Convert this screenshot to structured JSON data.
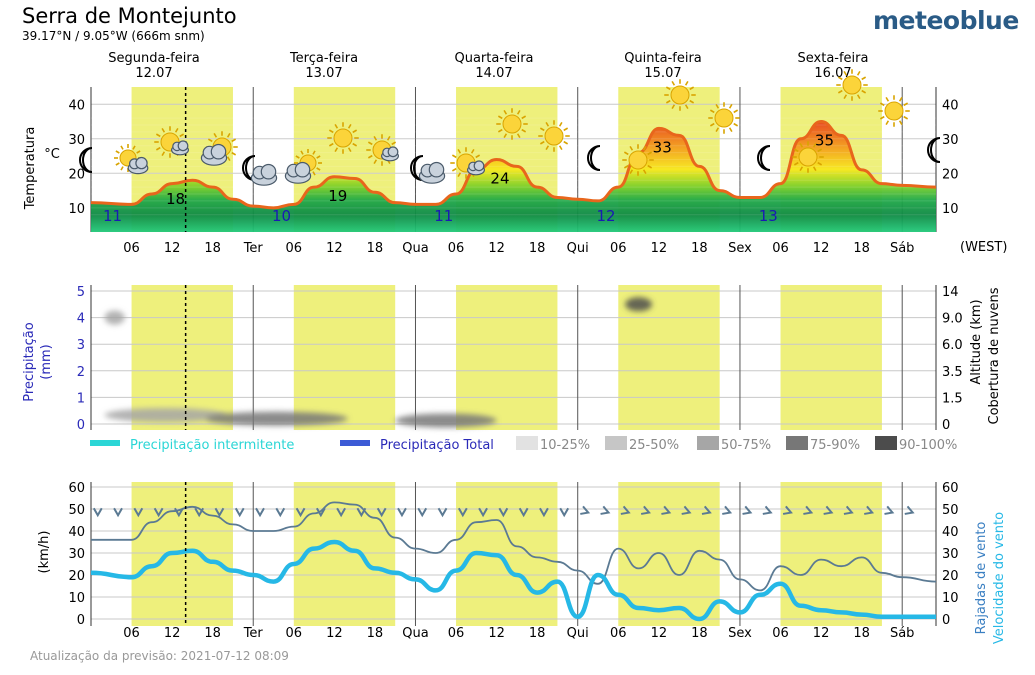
{
  "header": {
    "location": "Serra de Montejunto",
    "coordinates": "39.17°N / 9.05°W (666m snm)",
    "brand": "meteoblue"
  },
  "days": [
    {
      "name": "Segunda-feira",
      "date": "12.07",
      "short": ""
    },
    {
      "name": "Terça-feira",
      "date": "13.07",
      "short": "Ter"
    },
    {
      "name": "Quarta-feira",
      "date": "14.07",
      "short": "Qua"
    },
    {
      "name": "Quinta-feira",
      "date": "15.07",
      "short": "Qui"
    },
    {
      "name": "Sexta-feira",
      "date": "16.07",
      "short": "Sex"
    },
    {
      "name": "",
      "date": "",
      "short": "Sáb"
    }
  ],
  "hour_ticks": [
    "06",
    "12",
    "18"
  ],
  "timezone_label": "(WEST)",
  "colors": {
    "daylight": "#eef07c",
    "temp_line": "#e8661c",
    "wind": "#26b8e6",
    "gust": "#5b7a93",
    "cloud": "#8c8c8c"
  },
  "chart_data": [
    {
      "type": "area",
      "title": "Temperatura",
      "ylabel": "Temperatura °C",
      "ylim": [
        3,
        45
      ],
      "yticks": [
        10,
        20,
        30,
        40
      ],
      "x_unit": "hours from 2021-07-12 00:00",
      "x": [
        0,
        6,
        9,
        12,
        15,
        18,
        21,
        24,
        27,
        30,
        33,
        36,
        39,
        42,
        45,
        48,
        51,
        54,
        57,
        60,
        63,
        66,
        69,
        72,
        75,
        78,
        81,
        84,
        87,
        90,
        93,
        96,
        99,
        102,
        105,
        108,
        111,
        114,
        117,
        120,
        123
      ],
      "temperature_c": [
        11.5,
        11,
        14,
        17,
        18,
        16,
        12.5,
        10.5,
        10,
        11,
        16,
        19,
        18.5,
        14.5,
        11.5,
        11,
        11,
        14,
        21,
        24,
        22,
        16,
        13,
        12.5,
        12,
        16,
        26,
        33,
        31,
        22,
        15,
        13,
        13,
        17,
        30,
        35,
        31,
        21,
        17,
        16.5,
        16
      ],
      "labels": [
        {
          "text": "11",
          "kind": "min"
        },
        {
          "text": "18",
          "kind": "max"
        },
        {
          "text": "10",
          "kind": "min"
        },
        {
          "text": "19",
          "kind": "max"
        },
        {
          "text": "11",
          "kind": "min"
        },
        {
          "text": "24",
          "kind": "max"
        },
        {
          "text": "12",
          "kind": "min"
        },
        {
          "text": "33",
          "kind": "max"
        },
        {
          "text": "13",
          "kind": "min"
        },
        {
          "text": "35",
          "kind": "max"
        }
      ]
    },
    {
      "type": "heatmap",
      "title": "Precipitação",
      "ylabel": "Precipitação (mm)",
      "ylim": [
        0,
        5
      ],
      "yticks": [
        0,
        1,
        2,
        3,
        4,
        5
      ],
      "y2label": "Cobertura de nuvens Altitude (km)",
      "y2ticks": [
        "0",
        "1.5",
        "3.5",
        "6.0",
        "9.0",
        "14"
      ],
      "legend": [
        "Precipitação intermitente",
        "Precipitação Total",
        "10-25%",
        "25-50%",
        "50-75%",
        "75-90%",
        "90-100%"
      ],
      "cloud_patches": [
        {
          "x_start": 2,
          "x_end": 5,
          "altitude_km": 9.0,
          "level": "50-75%"
        },
        {
          "x_start": 2,
          "x_end": 20,
          "altitude_km": 0.5,
          "level": "50-75%"
        },
        {
          "x_start": 17,
          "x_end": 38,
          "altitude_km": 0.3,
          "level": "75-90%"
        },
        {
          "x_start": 45,
          "x_end": 60,
          "altitude_km": 0.2,
          "level": "75-90%"
        },
        {
          "x_start": 79,
          "x_end": 83,
          "altitude_km": 11.5,
          "level": "90-100%"
        }
      ]
    },
    {
      "type": "line",
      "title": "Vento",
      "ylabel": "(km/h)",
      "ylim": [
        0,
        60
      ],
      "yticks": [
        0,
        10,
        20,
        30,
        40,
        50,
        60
      ],
      "y2label": "Rajadas de vento Velocidade do vento",
      "x_unit": "hours from 2021-07-12 00:00",
      "series": [
        {
          "name": "Rajadas de vento",
          "x": [
            0,
            6,
            9,
            12,
            15,
            18,
            21,
            24,
            27,
            30,
            33,
            36,
            39,
            42,
            45,
            48,
            51,
            54,
            57,
            60,
            63,
            66,
            69,
            72,
            75,
            78,
            81,
            84,
            87,
            90,
            93,
            96,
            99,
            102,
            105,
            108,
            111,
            114,
            117,
            120,
            123
          ],
          "values": [
            36,
            36,
            44,
            49,
            51,
            47,
            43,
            40,
            40,
            42,
            48,
            53,
            52,
            46,
            37,
            32,
            30,
            36,
            44,
            45,
            33,
            28,
            26,
            22,
            16,
            32,
            23,
            30,
            20,
            31,
            27,
            18,
            13,
            24,
            20,
            27,
            24,
            28,
            21,
            19,
            17
          ]
        },
        {
          "name": "Velocidade do vento",
          "x": [
            0,
            6,
            9,
            12,
            15,
            18,
            21,
            24,
            27,
            30,
            33,
            36,
            39,
            42,
            45,
            48,
            51,
            54,
            57,
            60,
            63,
            66,
            69,
            72,
            75,
            78,
            81,
            84,
            87,
            90,
            93,
            96,
            99,
            102,
            105,
            108,
            111,
            114,
            117,
            120,
            123
          ],
          "values": [
            21,
            19,
            24,
            30,
            31,
            26,
            22,
            20,
            17,
            25,
            32,
            35,
            31,
            23,
            21,
            18,
            13,
            22,
            30,
            29,
            20,
            12,
            17,
            1,
            20,
            11,
            5,
            4,
            5,
            0,
            8,
            3,
            11,
            16,
            6,
            4,
            3,
            2,
            1,
            1,
            1
          ]
        }
      ],
      "wind_direction_from": "N"
    }
  ],
  "footer": {
    "updated": "Atualização da previsão: 2021-07-12 08:09"
  }
}
